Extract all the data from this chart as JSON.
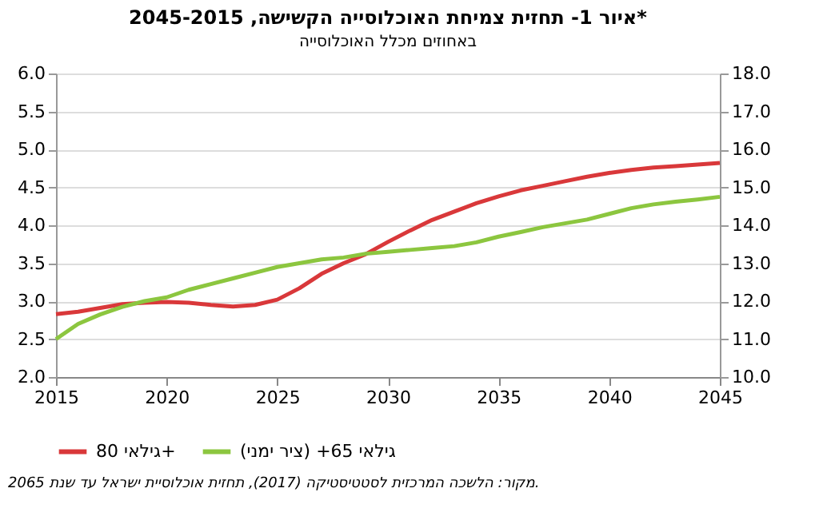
{
  "chart_data": {
    "type": "line",
    "title": "איור 1- תחזית צמיחת האוכלוסייה הקשישה, 2045-2015*",
    "subtitle": "באחוזים מכלל האוכלוסייה",
    "x": [
      2015,
      2016,
      2017,
      2018,
      2019,
      2020,
      2021,
      2022,
      2023,
      2024,
      2025,
      2026,
      2027,
      2028,
      2029,
      2030,
      2031,
      2032,
      2033,
      2034,
      2035,
      2036,
      2037,
      2038,
      2039,
      2040,
      2041,
      2042,
      2043,
      2044,
      2045
    ],
    "series": [
      {
        "name": "גילאי 80+",
        "color": "#d9383a",
        "values": [
          2.83,
          2.86,
          2.91,
          2.96,
          2.98,
          2.99,
          2.98,
          2.95,
          2.93,
          2.95,
          3.02,
          3.17,
          3.36,
          3.5,
          3.62,
          3.78,
          3.93,
          4.07,
          4.18,
          4.29,
          4.38,
          4.46,
          4.52,
          4.58,
          4.64,
          4.69,
          4.73,
          4.76,
          4.78,
          4.8,
          4.82
        ]
      },
      {
        "name": "גילאי 65+ (ציר ימני)",
        "color": "#8cc63f",
        "axis": "y2",
        "values": [
          11.0,
          11.4,
          11.65,
          11.85,
          12.0,
          12.1,
          12.3,
          12.45,
          12.6,
          12.75,
          12.9,
          13.0,
          13.1,
          13.15,
          13.25,
          13.3,
          13.35,
          13.4,
          13.45,
          13.55,
          13.7,
          13.82,
          13.95,
          14.05,
          14.15,
          14.3,
          14.45,
          14.55,
          14.62,
          14.68,
          14.75
        ]
      }
    ],
    "xlim": [
      2015,
      2045
    ],
    "xticks": [
      2015,
      2020,
      2025,
      2030,
      2035,
      2040,
      2045
    ],
    "ylim": [
      2.0,
      6.0
    ],
    "yticks": [
      {
        "value": 2,
        "label": "2.0"
      },
      2.5,
      {
        "value": 3,
        "label": "3.0"
      },
      3.5,
      {
        "value": 4,
        "label": "4.0"
      },
      4.5,
      {
        "value": 5,
        "label": "5.0"
      },
      5.5,
      {
        "value": 6,
        "label": "6.0"
      }
    ],
    "y2lim": [
      10.0,
      18.0
    ],
    "y2ticks": [
      {
        "value": 10,
        "label": "10.0"
      },
      {
        "value": 11,
        "label": "11.0"
      },
      {
        "value": 12,
        "label": "12.0"
      },
      {
        "value": 13,
        "label": "13.0"
      },
      {
        "value": 14,
        "label": "14.0"
      },
      {
        "value": 15,
        "label": "15.0"
      },
      {
        "value": 16,
        "label": "16.0"
      },
      {
        "value": 17,
        "label": "17.0"
      },
      {
        "value": 18,
        "label": "18.0"
      }
    ],
    "grid": "y",
    "legend": "bottom",
    "line_style": "solid",
    "marker": "none",
    "annotations": [
      "מקור: הלשכה המרכזית לסטטיסטיקה (2017), תחזית אוכלוסיית ישראל עד שנת 2065."
    ]
  }
}
